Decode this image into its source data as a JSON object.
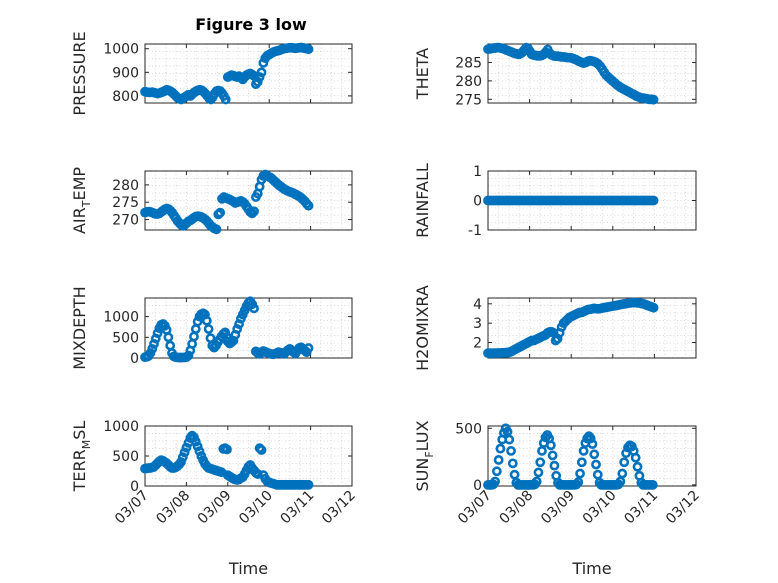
{
  "title": "Figure 3 low",
  "marker_color": "#0072BD",
  "chart_data": [
    {
      "type": "scatter",
      "name": "pressure",
      "ylabel": "PRESSURE",
      "title": "Figure 3 low",
      "xlabel": "",
      "xlim": [
        0,
        5
      ],
      "ylim": [
        770,
        1020
      ],
      "yticks": [
        800,
        900,
        1000
      ],
      "ytick_labels": [
        "800",
        "900",
        "1000"
      ],
      "xticks": [
        0,
        1,
        2,
        3,
        4,
        5
      ],
      "xtick_labels": [],
      "segments": [
        {
          "x0": 0.0,
          "x1": 1.05,
          "n": 25,
          "ys": [
            818,
            816,
            815,
            815,
            816,
            814,
            812,
            810,
            812,
            815,
            818,
            822,
            826,
            824,
            820,
            815,
            808,
            800,
            792,
            788,
            785,
            790,
            795,
            800,
            805
          ]
        },
        {
          "x0": 1.1,
          "x1": 1.95,
          "n": 20,
          "ys": [
            800,
            808,
            815,
            820,
            824,
            826,
            824,
            818,
            810,
            800,
            790,
            785,
            795,
            810,
            820,
            823,
            821,
            812,
            800,
            785
          ]
        },
        {
          "x0": 2.0,
          "x1": 2.95,
          "n": 22,
          "ys": [
            880,
            884,
            888,
            886,
            882,
            880,
            884,
            878,
            870,
            880,
            888,
            892,
            895,
            890,
            885,
            850,
            860,
            880,
            900,
            940,
            960,
            970
          ]
        },
        {
          "x0": 3.0,
          "x1": 3.95,
          "n": 22,
          "ys": [
            975,
            980,
            985,
            988,
            990,
            992,
            995,
            998,
            1000,
            1002,
            1003,
            1004,
            1004,
            1003,
            1002,
            1003,
            1004,
            1005,
            1004,
            1002,
            1000,
            998
          ]
        }
      ]
    },
    {
      "type": "scatter",
      "name": "theta",
      "ylabel": "THETA",
      "xlabel": "",
      "xlim": [
        0,
        5
      ],
      "ylim": [
        274,
        290
      ],
      "yticks": [
        275,
        280,
        285
      ],
      "ytick_labels": [
        "275",
        "280",
        "285"
      ],
      "xticks": [
        0,
        1,
        2,
        3,
        4,
        5
      ],
      "xtick_labels": [],
      "segments": [
        {
          "x0": 0.0,
          "x1": 1.05,
          "n": 25,
          "ys": [
            288.6,
            288.7,
            288.8,
            288.9,
            288.9,
            289.0,
            289.0,
            288.9,
            288.8,
            288.6,
            288.4,
            288.2,
            288.0,
            287.8,
            287.6,
            287.4,
            287.3,
            287.2,
            287.4,
            287.8,
            288.4,
            289.0,
            288.8,
            288.0,
            287.2
          ]
        },
        {
          "x0": 1.1,
          "x1": 2.3,
          "n": 26,
          "ys": [
            287.0,
            286.9,
            286.8,
            286.8,
            286.9,
            287.2,
            287.8,
            288.5,
            287.5,
            287.0,
            286.8,
            286.7,
            286.7,
            286.6,
            286.5,
            286.5,
            286.4,
            286.3,
            286.3,
            286.2,
            286.0,
            285.8,
            285.5,
            285.2,
            285.0,
            284.8
          ]
        },
        {
          "x0": 2.35,
          "x1": 3.98,
          "n": 34,
          "ys": [
            285.0,
            285.3,
            285.5,
            285.4,
            285.2,
            285.0,
            284.6,
            284.0,
            283.2,
            282.3,
            281.5,
            281.0,
            280.5,
            280.0,
            279.5,
            279.0,
            278.6,
            278.2,
            277.9,
            277.6,
            277.3,
            277.0,
            276.7,
            276.4,
            276.1,
            275.8,
            275.6,
            275.4,
            275.3,
            275.2,
            275.1,
            275.0,
            275.0,
            274.9
          ]
        }
      ]
    },
    {
      "type": "scatter",
      "name": "air_temp",
      "ylabel": "AIR_TEMP",
      "ylabel_main": "AIR",
      "ylabel_sub": "T",
      "ylabel_rest": "EMP",
      "xlabel": "",
      "xlim": [
        0,
        5
      ],
      "ylim": [
        267,
        284
      ],
      "yticks": [
        270,
        275,
        280
      ],
      "ytick_labels": [
        "270",
        "275",
        "280"
      ],
      "xticks": [
        0,
        1,
        2,
        3,
        4,
        5
      ],
      "xtick_labels": [],
      "segments": [
        {
          "x0": 0.0,
          "x1": 1.05,
          "n": 25,
          "ys": [
            272,
            272.2,
            272.3,
            272.2,
            272.0,
            271.8,
            271.6,
            271.6,
            271.8,
            272.2,
            272.6,
            273.0,
            273.2,
            273.0,
            272.6,
            272.0,
            271.2,
            270.4,
            269.6,
            269.0,
            268.5,
            268.2,
            268.5,
            269.0,
            269.5
          ]
        },
        {
          "x0": 1.1,
          "x1": 1.95,
          "n": 20,
          "ys": [
            269.8,
            270.2,
            270.6,
            270.9,
            271.0,
            270.9,
            270.7,
            270.4,
            270.0,
            269.5,
            268.8,
            268.2,
            267.8,
            267.4,
            267.2,
            271.5,
            272.0,
            276.0,
            276.5,
            276.3
          ]
        },
        {
          "x0": 2.0,
          "x1": 2.95,
          "n": 22,
          "ys": [
            276.0,
            275.8,
            275.5,
            275.2,
            274.8,
            275.0,
            275.2,
            275.4,
            275.1,
            274.6,
            273.8,
            273.0,
            272.2,
            271.8,
            272.4,
            276.5,
            277.5,
            279.5,
            281.5,
            282.6,
            283.0,
            282.6
          ]
        },
        {
          "x0": 3.0,
          "x1": 3.95,
          "n": 22,
          "ys": [
            282.3,
            282.0,
            281.5,
            281.0,
            280.5,
            280.0,
            279.6,
            279.2,
            278.8,
            278.5,
            278.2,
            278.0,
            277.8,
            277.6,
            277.3,
            277.0,
            276.7,
            276.3,
            275.8,
            275.3,
            274.6,
            274.0
          ]
        }
      ]
    },
    {
      "type": "scatter",
      "name": "rainfall",
      "ylabel": "RAINFALL",
      "xlabel": "",
      "xlim": [
        0,
        5
      ],
      "ylim": [
        -1,
        1
      ],
      "yticks": [
        -1,
        0,
        1
      ],
      "ytick_labels": [
        "-1",
        "0",
        "1"
      ],
      "xticks": [
        0,
        1,
        2,
        3,
        4,
        5
      ],
      "xtick_labels": [],
      "segments": [
        {
          "x0": 0.0,
          "x1": 3.98,
          "n": 90,
          "ys": [
            0
          ]
        }
      ]
    },
    {
      "type": "scatter",
      "name": "mixdepth",
      "ylabel": "MIXDEPTH",
      "xlabel": "",
      "xlim": [
        0,
        5
      ],
      "ylim": [
        0,
        1450
      ],
      "yticks": [
        0,
        500,
        1000
      ],
      "ytick_labels": [
        "0",
        "500",
        "1000"
      ],
      "xticks": [
        0,
        1,
        2,
        3,
        4,
        5
      ],
      "xtick_labels": [],
      "segments": [
        {
          "x0": 0.0,
          "x1": 1.0,
          "n": 24,
          "ys": [
            20,
            30,
            50,
            120,
            220,
            340,
            470,
            600,
            720,
            800,
            820,
            780,
            680,
            500,
            300,
            120,
            40,
            20,
            15,
            10,
            10,
            12,
            15,
            20
          ]
        },
        {
          "x0": 1.05,
          "x1": 1.98,
          "n": 22,
          "ys": [
            60,
            180,
            340,
            520,
            700,
            880,
            1000,
            1060,
            1080,
            1050,
            900,
            700,
            480,
            300,
            250,
            300,
            380,
            450,
            520,
            580,
            620,
            500
          ]
        },
        {
          "x0": 2.0,
          "x1": 2.95,
          "n": 22,
          "ys": [
            400,
            350,
            380,
            420,
            560,
            700,
            820,
            950,
            1050,
            1150,
            1250,
            1330,
            1370,
            1300,
            1200,
            160,
            120,
            100,
            140,
            170,
            150,
            130
          ]
        },
        {
          "x0": 3.0,
          "x1": 3.95,
          "n": 22,
          "ys": [
            110,
            100,
            90,
            100,
            120,
            140,
            130,
            110,
            100,
            150,
            190,
            220,
            180,
            140,
            110,
            180,
            240,
            260,
            220,
            180,
            140,
            240
          ]
        }
      ]
    },
    {
      "type": "scatter",
      "name": "h2omixra",
      "ylabel": "H2OMIXRA",
      "xlabel": "",
      "xlim": [
        0,
        5
      ],
      "ylim": [
        1.2,
        4.3
      ],
      "yticks": [
        2,
        3,
        4
      ],
      "ytick_labels": [
        "2",
        "3",
        "4"
      ],
      "xticks": [
        0,
        1,
        2,
        3,
        4,
        5
      ],
      "xtick_labels": [],
      "segments": [
        {
          "x0": 0.0,
          "x1": 1.05,
          "n": 25,
          "ys": [
            1.45,
            1.45,
            1.45,
            1.45,
            1.45,
            1.46,
            1.46,
            1.46,
            1.47,
            1.47,
            1.48,
            1.48,
            1.5,
            1.55,
            1.6,
            1.65,
            1.7,
            1.75,
            1.8,
            1.85,
            1.9,
            1.95,
            2.0,
            2.05,
            2.1
          ]
        },
        {
          "x0": 1.1,
          "x1": 2.2,
          "n": 24,
          "ys": [
            2.1,
            2.15,
            2.2,
            2.25,
            2.3,
            2.35,
            2.4,
            2.5,
            2.55,
            2.55,
            2.5,
            2.1,
            2.2,
            2.5,
            2.8,
            3.0,
            3.1,
            3.2,
            3.3,
            3.35,
            3.4,
            3.45,
            3.5,
            3.55
          ]
        },
        {
          "x0": 2.25,
          "x1": 3.98,
          "n": 36,
          "ys": [
            3.55,
            3.6,
            3.65,
            3.7,
            3.72,
            3.74,
            3.76,
            3.75,
            3.74,
            3.75,
            3.78,
            3.8,
            3.82,
            3.84,
            3.86,
            3.88,
            3.9,
            3.92,
            3.94,
            3.96,
            3.98,
            4.0,
            4.02,
            4.04,
            4.05,
            4.06,
            4.06,
            4.05,
            4.04,
            4.02,
            4.0,
            3.96,
            3.92,
            3.88,
            3.84,
            3.8
          ]
        }
      ]
    },
    {
      "type": "scatter",
      "name": "terr_msl",
      "ylabel": "TERR_MSL",
      "ylabel_main": "TERR",
      "ylabel_sub": "M",
      "ylabel_rest": "SL",
      "xlabel": "Time",
      "xlim": [
        0,
        5
      ],
      "ylim": [
        0,
        1000
      ],
      "yticks": [
        0,
        500,
        1000
      ],
      "ytick_labels": [
        "0",
        "500",
        "1000"
      ],
      "xticks": [
        0,
        1,
        2,
        3,
        4,
        5
      ],
      "xtick_labels": [
        "03/07",
        "03/08",
        "03/09",
        "03/10",
        "03/11",
        "03/12"
      ],
      "segments": [
        {
          "x0": 0.0,
          "x1": 1.0,
          "n": 24,
          "ys": [
            290,
            295,
            300,
            300,
            310,
            320,
            350,
            380,
            410,
            430,
            420,
            400,
            380,
            350,
            320,
            300,
            300,
            310,
            330,
            360,
            400,
            480,
            560,
            640
          ]
        },
        {
          "x0": 1.05,
          "x1": 1.98,
          "n": 22,
          "ys": [
            720,
            800,
            840,
            810,
            740,
            660,
            580,
            500,
            430,
            370,
            330,
            300,
            290,
            280,
            270,
            260,
            250,
            240,
            230,
            620,
            630,
            610
          ]
        },
        {
          "x0": 2.0,
          "x1": 2.95,
          "n": 22,
          "ys": [
            180,
            160,
            140,
            120,
            110,
            100,
            110,
            130,
            150,
            200,
            260,
            320,
            350,
            300,
            260,
            220,
            200,
            630,
            600,
            180,
            120,
            80
          ]
        },
        {
          "x0": 3.0,
          "x1": 3.95,
          "n": 22,
          "ys": [
            60,
            50,
            40,
            30,
            20,
            20,
            20,
            20,
            20,
            20,
            20,
            20,
            20,
            20,
            20,
            20,
            20,
            20,
            20,
            20,
            20,
            20
          ]
        }
      ]
    },
    {
      "type": "scatter",
      "name": "sunflux",
      "ylabel": "SUN_FLUX",
      "ylabel_main": "SUN",
      "ylabel_sub": "F",
      "ylabel_rest": "LUX",
      "xlabel": "Time",
      "xlim": [
        0,
        5
      ],
      "ylim": [
        -10,
        520
      ],
      "yticks": [
        0,
        500
      ],
      "ytick_labels": [
        "0",
        "500"
      ],
      "xticks": [
        0,
        1,
        2,
        3,
        4,
        5
      ],
      "xtick_labels": [
        "03/07",
        "03/08",
        "03/09",
        "03/10",
        "03/11",
        "03/12"
      ],
      "segments": [
        {
          "x0": 0.0,
          "x1": 0.98,
          "n": 24,
          "ys": [
            0,
            0,
            0,
            5,
            30,
            120,
            220,
            320,
            400,
            460,
            500,
            470,
            400,
            300,
            190,
            90,
            20,
            0,
            0,
            0,
            0,
            0,
            0,
            0
          ]
        },
        {
          "x0": 1.0,
          "x1": 1.98,
          "n": 24,
          "ys": [
            0,
            0,
            0,
            5,
            30,
            110,
            200,
            300,
            370,
            420,
            440,
            410,
            350,
            260,
            170,
            80,
            20,
            0,
            0,
            0,
            0,
            0,
            0,
            0
          ]
        },
        {
          "x0": 2.0,
          "x1": 2.98,
          "n": 24,
          "ys": [
            0,
            0,
            0,
            5,
            25,
            100,
            200,
            300,
            370,
            410,
            430,
            410,
            360,
            270,
            180,
            90,
            20,
            0,
            0,
            0,
            0,
            0,
            0,
            0
          ]
        },
        {
          "x0": 3.0,
          "x1": 3.96,
          "n": 22,
          "ys": [
            0,
            0,
            0,
            5,
            30,
            100,
            200,
            280,
            330,
            350,
            340,
            300,
            240,
            160,
            80,
            20,
            0,
            0,
            0,
            0,
            0,
            0
          ]
        }
      ]
    }
  ]
}
